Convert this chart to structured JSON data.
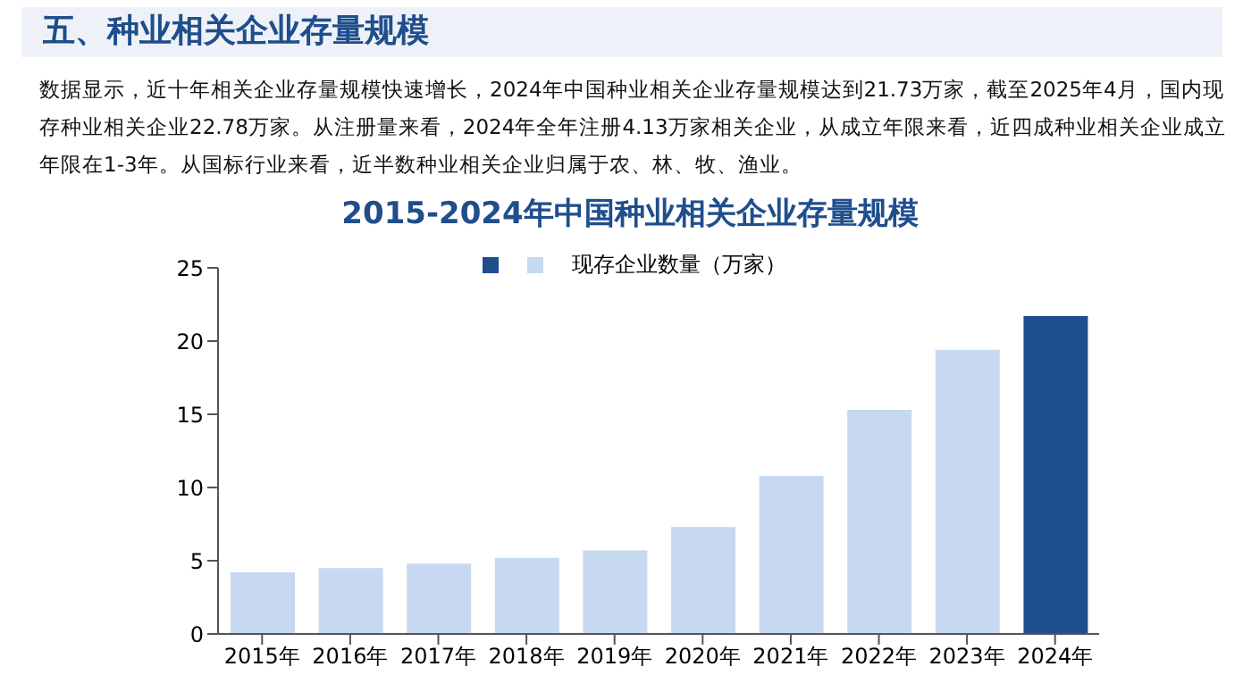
{
  "chart_data": {
    "type": "bar",
    "title": "2015-2024年中国种业相关企业存量规模",
    "annotations": [
      "五、种业相关企业存量规模",
      "数据显示，近十年相关企业存量规模快速增长，2024年中国种业相关企业存量规模达到21.73万家，截至2025年4月，国内现存种业相关企业22.78万家。从注册量来看，2024年全年注册4.13万家相关企业，从成立年限来看，近四成种业相关企业成立年限在1-3年。从国标行业来看，近半数种业相关企业归属于农、林、牧、渔业。"
    ],
    "categories": [
      "2015年",
      "2016年",
      "2017年",
      "2018年",
      "2019年",
      "2020年",
      "2021年",
      "2022年",
      "2023年",
      "2024年"
    ],
    "series": [
      {
        "name": "现存企业数量（万家）",
        "values": [
          4.2,
          4.5,
          4.8,
          5.2,
          5.7,
          7.3,
          10.8,
          15.3,
          19.4,
          21.7
        ],
        "colors": [
          "#c6d9f0",
          "#c6d9f0",
          "#c6d9f0",
          "#c6d9f0",
          "#c6d9f0",
          "#c6d9f0",
          "#c6d9f0",
          "#c6d9f0",
          "#c6d9f0",
          "#1f4e8c"
        ]
      }
    ],
    "ylim": [
      0,
      25
    ],
    "yticks": [
      0,
      5,
      10,
      15,
      20,
      25
    ],
    "legend": "top"
  }
}
